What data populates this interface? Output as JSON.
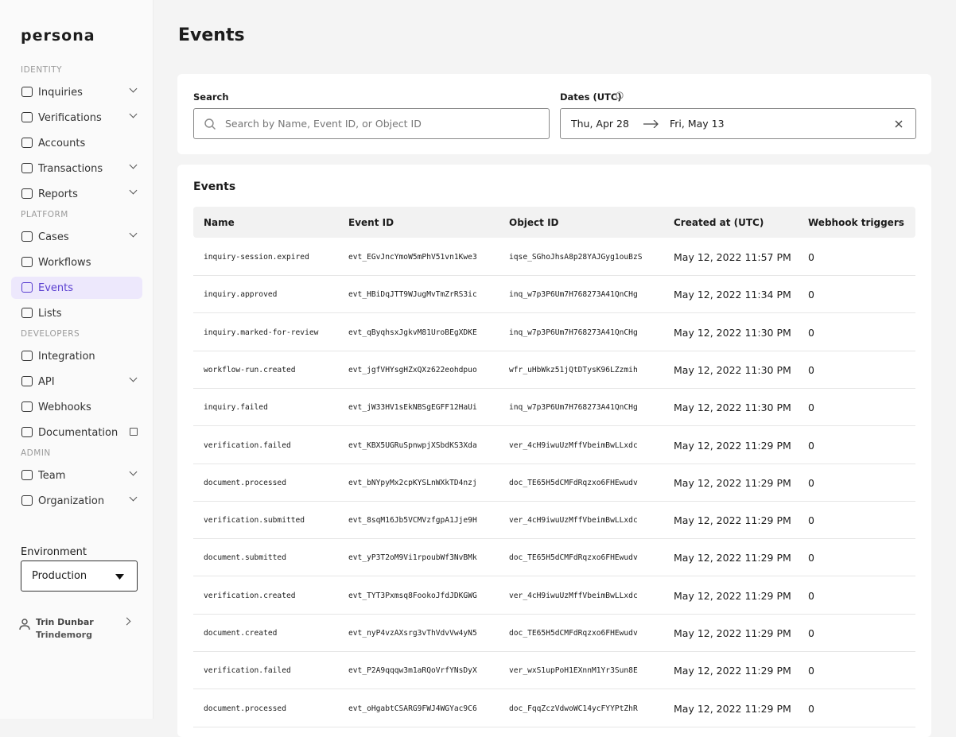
{
  "sidebar": {
    "logo": "persona",
    "sections": [
      {
        "title": "IDENTITY",
        "items": [
          {
            "label": "Inquiries",
            "expandable": true
          },
          {
            "label": "Verifications",
            "expandable": true
          },
          {
            "label": "Accounts",
            "expandable": false
          },
          {
            "label": "Transactions",
            "expandable": true
          },
          {
            "label": "Reports",
            "expandable": true
          }
        ]
      },
      {
        "title": "PLATFORM",
        "items": [
          {
            "label": "Cases",
            "expandable": true
          },
          {
            "label": "Workflows",
            "expandable": false
          },
          {
            "label": "Events",
            "expandable": false,
            "active": true
          },
          {
            "label": "Lists",
            "expandable": false
          }
        ]
      },
      {
        "title": "DEVELOPERS",
        "items": [
          {
            "label": "Integration",
            "expandable": false
          },
          {
            "label": "API",
            "expandable": true
          },
          {
            "label": "Webhooks",
            "expandable": false
          },
          {
            "label": "Documentation",
            "expandable": false,
            "external": true
          }
        ]
      },
      {
        "title": "ADMIN",
        "items": [
          {
            "label": "Team",
            "expandable": true
          },
          {
            "label": "Organization",
            "expandable": true
          }
        ]
      }
    ],
    "environment_label": "Environment",
    "environment": "Production",
    "user_name": "Trin Dunbar",
    "org": "Trindemorg"
  },
  "page_title": "Events",
  "filters": {
    "search_label": "Search",
    "search_placeholder": "Search by Name, Event ID, or Object ID",
    "dates_label": "Dates (UTC)",
    "date_from": "Thu, Apr 28",
    "date_to": "Fri, May 13"
  },
  "table": {
    "title": "Events",
    "headers": [
      "Name",
      "Event ID",
      "Object ID",
      "Created at (UTC)",
      "Webhook triggers"
    ],
    "rows": [
      [
        "inquiry-session.expired",
        "evt_EGvJncYmoW5mPhV51vn1Kwe3",
        "iqse_SGhoJhsA8p28YAJGyg1ouBzS",
        "May 12, 2022 11:57 PM",
        0
      ],
      [
        "inquiry.approved",
        "evt_HBiDqJTT9WJugMvTmZrRS3ic",
        "inq_w7p3P6Um7H768273A41QnCHg",
        "May 12, 2022 11:34 PM",
        0
      ],
      [
        "inquiry.marked-for-review",
        "evt_qByqhsxJgkvM81UroBEgXDKE",
        "inq_w7p3P6Um7H768273A41QnCHg",
        "May 12, 2022 11:30 PM",
        0
      ],
      [
        "workflow-run.created",
        "evt_jgfVHYsgHZxQXz622eohdpuo",
        "wfr_uHbWkz51jQtDTysK96LZzmih",
        "May 12, 2022 11:30 PM",
        0
      ],
      [
        "inquiry.failed",
        "evt_jW33HV1sEkNBSgEGFF12HaUi",
        "inq_w7p3P6Um7H768273A41QnCHg",
        "May 12, 2022 11:30 PM",
        0
      ],
      [
        "verification.failed",
        "evt_KBX5UGRuSpnwpjXSbdKS3Xda",
        "ver_4cH9iwuUzMffVbeimBwLLxdc",
        "May 12, 2022 11:29 PM",
        0
      ],
      [
        "document.processed",
        "evt_bNYpyMx2cpKYSLnWXkTD4nzj",
        "doc_TE65H5dCMFdRqzxo6FHEwudv",
        "May 12, 2022 11:29 PM",
        0
      ],
      [
        "verification.submitted",
        "evt_8sqM16Jb5VCMVzfgpA1Jje9H",
        "ver_4cH9iwuUzMffVbeimBwLLxdc",
        "May 12, 2022 11:29 PM",
        0
      ],
      [
        "document.submitted",
        "evt_yP3T2oM9Vi1rpoubWf3NvBMk",
        "doc_TE65H5dCMFdRqzxo6FHEwudv",
        "May 12, 2022 11:29 PM",
        0
      ],
      [
        "verification.created",
        "evt_TYT3Pxmsq8FookoJfdJDKGWG",
        "ver_4cH9iwuUzMffVbeimBwLLxdc",
        "May 12, 2022 11:29 PM",
        0
      ],
      [
        "document.created",
        "evt_nyP4vzAXsrg3vThVdvVw4yN5",
        "doc_TE65H5dCMFdRqzxo6FHEwudv",
        "May 12, 2022 11:29 PM",
        0
      ],
      [
        "verification.failed",
        "evt_P2A9qqqw3m1aRQoVrfYNsDyX",
        "ver_wxS1upPoH1EXnnM1Yr3Sun8E",
        "May 12, 2022 11:29 PM",
        0
      ],
      [
        "document.processed",
        "evt_oHgabtCSARG9FWJ4WGYac9C6",
        "doc_FqqZczVdwoWC14ycFYYPtZhR",
        "May 12, 2022 11:29 PM",
        0
      ]
    ]
  }
}
